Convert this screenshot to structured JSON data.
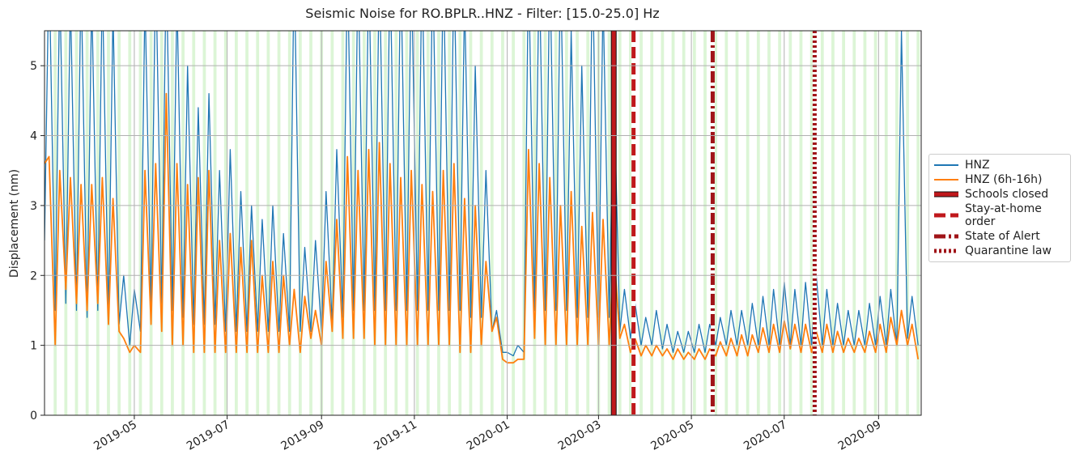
{
  "chart_data": {
    "type": "line",
    "title": "Seismic Noise for RO.BPLR..HNZ - Filter: [15.0-25.0] Hz",
    "ylabel": "Displacement (nm)",
    "x": [
      "2019-03-03",
      "2019-03-06",
      "2019-03-10",
      "2019-03-13",
      "2019-03-17",
      "2019-03-20",
      "2019-03-24",
      "2019-03-27",
      "2019-03-31",
      "2019-04-03",
      "2019-04-07",
      "2019-04-10",
      "2019-04-14",
      "2019-04-17",
      "2019-04-21",
      "2019-04-24",
      "2019-04-28",
      "2019-05-01",
      "2019-05-05",
      "2019-05-08",
      "2019-05-12",
      "2019-05-15",
      "2019-05-19",
      "2019-05-22",
      "2019-05-26",
      "2019-05-29",
      "2019-06-02",
      "2019-06-05",
      "2019-06-09",
      "2019-06-12",
      "2019-06-16",
      "2019-06-19",
      "2019-06-23",
      "2019-06-26",
      "2019-06-30",
      "2019-07-03",
      "2019-07-07",
      "2019-07-10",
      "2019-07-14",
      "2019-07-17",
      "2019-07-21",
      "2019-07-24",
      "2019-07-28",
      "2019-07-31",
      "2019-08-04",
      "2019-08-07",
      "2019-08-11",
      "2019-08-14",
      "2019-08-18",
      "2019-08-21",
      "2019-08-25",
      "2019-08-28",
      "2019-09-01",
      "2019-09-04",
      "2019-09-08",
      "2019-09-11",
      "2019-09-15",
      "2019-09-18",
      "2019-09-22",
      "2019-09-25",
      "2019-09-29",
      "2019-10-02",
      "2019-10-06",
      "2019-10-09",
      "2019-10-13",
      "2019-10-16",
      "2019-10-20",
      "2019-10-23",
      "2019-10-27",
      "2019-10-30",
      "2019-11-03",
      "2019-11-06",
      "2019-11-10",
      "2019-11-13",
      "2019-11-17",
      "2019-11-20",
      "2019-11-24",
      "2019-11-27",
      "2019-12-01",
      "2019-12-04",
      "2019-12-08",
      "2019-12-11",
      "2019-12-15",
      "2019-12-18",
      "2019-12-22",
      "2019-12-25",
      "2019-12-29",
      "2020-01-01",
      "2020-01-05",
      "2020-01-08",
      "2020-01-12",
      "2020-01-15",
      "2020-01-19",
      "2020-01-22",
      "2020-01-26",
      "2020-01-29",
      "2020-02-02",
      "2020-02-05",
      "2020-02-09",
      "2020-02-12",
      "2020-02-16",
      "2020-02-19",
      "2020-02-23",
      "2020-02-26",
      "2020-03-01",
      "2020-03-04",
      "2020-03-08",
      "2020-03-11",
      "2020-03-15",
      "2020-03-18",
      "2020-03-22",
      "2020-03-25",
      "2020-03-29",
      "2020-04-01",
      "2020-04-05",
      "2020-04-08",
      "2020-04-12",
      "2020-04-15",
      "2020-04-19",
      "2020-04-22",
      "2020-04-26",
      "2020-04-29",
      "2020-05-03",
      "2020-05-06",
      "2020-05-10",
      "2020-05-13",
      "2020-05-17",
      "2020-05-20",
      "2020-05-24",
      "2020-05-27",
      "2020-05-31",
      "2020-06-03",
      "2020-06-07",
      "2020-06-10",
      "2020-06-14",
      "2020-06-17",
      "2020-06-21",
      "2020-06-24",
      "2020-06-28",
      "2020-07-01",
      "2020-07-05",
      "2020-07-08",
      "2020-07-12",
      "2020-07-15",
      "2020-07-19",
      "2020-07-22",
      "2020-07-26",
      "2020-07-29",
      "2020-08-02",
      "2020-08-05",
      "2020-08-09",
      "2020-08-12",
      "2020-08-16",
      "2020-08-19",
      "2020-08-23",
      "2020-08-26",
      "2020-08-30",
      "2020-09-02",
      "2020-09-06",
      "2020-09-09",
      "2020-09-13",
      "2020-09-16",
      "2020-09-20",
      "2020-09-23",
      "2020-09-27"
    ],
    "series": [
      {
        "name": "HNZ",
        "color": "#1f77b4",
        "values": [
          2.5,
          6.5,
          1.5,
          6.2,
          1.6,
          6.0,
          1.5,
          6.3,
          1.4,
          6.0,
          1.5,
          6.2,
          1.4,
          5.8,
          1.3,
          2.0,
          1.0,
          1.8,
          1.2,
          6.0,
          1.5,
          6.5,
          1.6,
          6.5,
          1.5,
          6.0,
          1.4,
          5.0,
          1.3,
          4.4,
          1.3,
          4.6,
          1.3,
          3.5,
          1.2,
          3.8,
          1.2,
          3.2,
          1.2,
          3.0,
          1.2,
          2.8,
          1.2,
          3.0,
          1.2,
          2.6,
          1.2,
          6.5,
          1.2,
          2.4,
          1.2,
          2.5,
          1.2,
          3.2,
          1.3,
          3.8,
          1.4,
          6.5,
          1.5,
          6.5,
          1.5,
          6.5,
          1.5,
          6.5,
          1.5,
          6.5,
          1.5,
          6.5,
          1.5,
          6.5,
          1.5,
          6.5,
          1.5,
          6.5,
          1.5,
          6.5,
          1.5,
          6.5,
          1.5,
          6.0,
          1.4,
          5.0,
          1.4,
          3.5,
          1.2,
          1.5,
          0.9,
          0.9,
          0.85,
          1.0,
          0.9,
          6.5,
          1.5,
          6.5,
          1.5,
          6.5,
          1.5,
          6.5,
          1.5,
          5.5,
          1.4,
          5.0,
          1.4,
          6.5,
          1.4,
          6.0,
          1.4,
          4.8,
          1.2,
          1.8,
          1.1,
          1.6,
          1.0,
          1.4,
          1.0,
          1.5,
          0.95,
          1.3,
          0.9,
          1.2,
          0.9,
          1.2,
          0.9,
          1.3,
          0.9,
          1.3,
          1.0,
          1.4,
          1.0,
          1.5,
          1.0,
          1.5,
          1.0,
          1.6,
          1.0,
          1.7,
          1.0,
          1.8,
          1.0,
          1.9,
          1.0,
          1.8,
          1.0,
          1.9,
          1.0,
          2.0,
          1.0,
          1.8,
          1.0,
          1.6,
          1.0,
          1.5,
          1.0,
          1.5,
          1.0,
          1.6,
          1.0,
          1.7,
          1.0,
          1.8,
          1.0,
          5.5,
          1.1,
          1.7,
          1.0
        ]
      },
      {
        "name": "HNZ (6h-16h)",
        "color": "#ff7f0e",
        "values": [
          3.6,
          3.7,
          1.0,
          3.5,
          1.8,
          3.4,
          1.6,
          3.3,
          1.5,
          3.3,
          1.6,
          3.4,
          1.3,
          3.1,
          1.2,
          1.1,
          0.9,
          1.0,
          0.9,
          3.5,
          1.3,
          3.6,
          1.2,
          4.6,
          1.0,
          3.6,
          1.0,
          3.3,
          0.9,
          3.4,
          0.9,
          3.5,
          0.9,
          2.5,
          0.9,
          2.6,
          0.9,
          2.4,
          0.9,
          2.5,
          0.9,
          2.0,
          0.9,
          2.2,
          0.9,
          2.0,
          1.0,
          1.8,
          0.9,
          1.7,
          1.1,
          1.5,
          1.0,
          2.2,
          1.2,
          2.8,
          1.1,
          3.7,
          1.1,
          3.5,
          1.1,
          3.8,
          1.0,
          3.9,
          1.0,
          3.6,
          1.0,
          3.4,
          1.0,
          3.5,
          1.0,
          3.3,
          1.0,
          3.2,
          1.0,
          3.5,
          1.0,
          3.6,
          0.9,
          3.1,
          0.9,
          3.0,
          1.0,
          2.2,
          1.2,
          1.4,
          0.8,
          0.75,
          0.75,
          0.8,
          0.8,
          3.8,
          1.1,
          3.6,
          1.0,
          3.4,
          1.0,
          3.0,
          1.0,
          3.2,
          1.0,
          2.7,
          1.0,
          2.9,
          1.0,
          2.8,
          1.0,
          2.4,
          1.1,
          1.3,
          0.9,
          1.1,
          0.85,
          1.0,
          0.85,
          1.0,
          0.85,
          0.95,
          0.8,
          0.95,
          0.8,
          0.9,
          0.8,
          0.95,
          0.8,
          0.95,
          0.85,
          1.05,
          0.85,
          1.1,
          0.85,
          1.15,
          0.85,
          1.15,
          0.9,
          1.25,
          0.9,
          1.3,
          0.9,
          1.35,
          0.95,
          1.3,
          0.9,
          1.3,
          0.9,
          1.2,
          0.9,
          1.3,
          0.9,
          1.2,
          0.9,
          1.1,
          0.9,
          1.1,
          0.9,
          1.2,
          0.9,
          1.3,
          0.9,
          1.4,
          1.0,
          1.5,
          1.0,
          1.3,
          0.8
        ]
      }
    ],
    "events": [
      {
        "name": "Schools closed",
        "date": "2020-03-11",
        "style": "solid",
        "color": "#c0181c"
      },
      {
        "name": "Stay-at-home order",
        "date": "2020-03-24",
        "style": "dashed",
        "color": "#c0181c"
      },
      {
        "name": "State of Alert",
        "date": "2020-05-15",
        "style": "dashdot",
        "color": "#a01418"
      },
      {
        "name": "Quarantine law",
        "date": "2020-07-21",
        "style": "dotted",
        "color": "#a01418"
      }
    ],
    "xlim": [
      "2019-03-03",
      "2020-09-29"
    ],
    "xticks": [
      "2019-05",
      "2019-07",
      "2019-09",
      "2019-11",
      "2020-01",
      "2020-03",
      "2020-05",
      "2020-07",
      "2020-09"
    ],
    "ylim": [
      0,
      5.5
    ],
    "yticks": [
      0,
      1,
      2,
      3,
      4,
      5
    ],
    "grid": true,
    "weekend_shading": "#dcf5d6",
    "legend": "outside right"
  }
}
